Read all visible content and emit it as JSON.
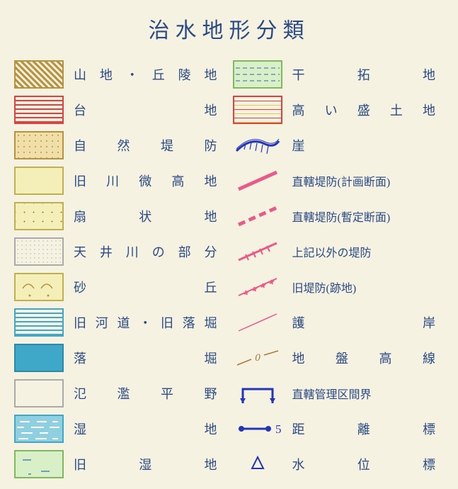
{
  "title": "治水地形分類",
  "left": [
    {
      "label": "山地・丘陵地",
      "swatch": "sw-yamaji"
    },
    {
      "label": "台　　　　地",
      "swatch": "sw-daichi"
    },
    {
      "label": "自 然 堤 防",
      "swatch": "sw-shizen"
    },
    {
      "label": "旧川微高地",
      "swatch": "sw-kyusen"
    },
    {
      "label": "扇　状　地",
      "swatch": "sw-senjo"
    },
    {
      "label": "天井川の部分",
      "swatch": "sw-tenjo"
    },
    {
      "label": "砂　　　　丘",
      "swatch": "sw-sakyu",
      "inner_svg": "sakyu"
    },
    {
      "label": "旧河道・旧落堀",
      "swatch": "sw-kyukado"
    },
    {
      "label": "落　　　　堀",
      "swatch": "sw-ochibori"
    },
    {
      "label": "氾 濫 平 野",
      "swatch": "sw-hanran"
    },
    {
      "label": "湿　　　　地",
      "swatch": "sw-shicchi",
      "inner_svg": "shicchi"
    },
    {
      "label": "旧　湿　地",
      "swatch": "sw-kyushicchi",
      "inner_svg": "kyushicchi"
    }
  ],
  "right": [
    {
      "label": "干　拓　地",
      "swatch": "sw-kantaku",
      "inner_svg": "kantaku"
    },
    {
      "label": "高い盛土地",
      "swatch": "sw-morido"
    },
    {
      "label": "崖",
      "symbol": "gake"
    },
    {
      "label": "直轄堤防(計画断面)",
      "symbol": "chokkatsu_keikaku",
      "small": true
    },
    {
      "label": "直轄堤防(暫定断面)",
      "symbol": "chokkatsu_zantei",
      "small": true
    },
    {
      "label": "上記以外の堤防",
      "symbol": "other_teibo",
      "small": true
    },
    {
      "label": "旧堤防(跡地)",
      "symbol": "kyu_teibo",
      "small": true
    },
    {
      "label": "護　　　　岸",
      "symbol": "gogan"
    },
    {
      "label": "地盤高線",
      "symbol": "jiban"
    },
    {
      "label": "直轄管理区間界",
      "symbol": "kukankai",
      "small": true
    },
    {
      "label": "距　離　標",
      "symbol": "kyori"
    },
    {
      "label": "水　位　標",
      "symbol": "suii"
    }
  ],
  "colors": {
    "title": "#2a4a85",
    "text": "#2a4a85",
    "background": "#f5f2e2",
    "pink": "#e85a8a",
    "blue": "#2436b8",
    "red": "#e04040",
    "brown": "#a87838"
  },
  "kyori_num": "5",
  "jiban_num": "0"
}
